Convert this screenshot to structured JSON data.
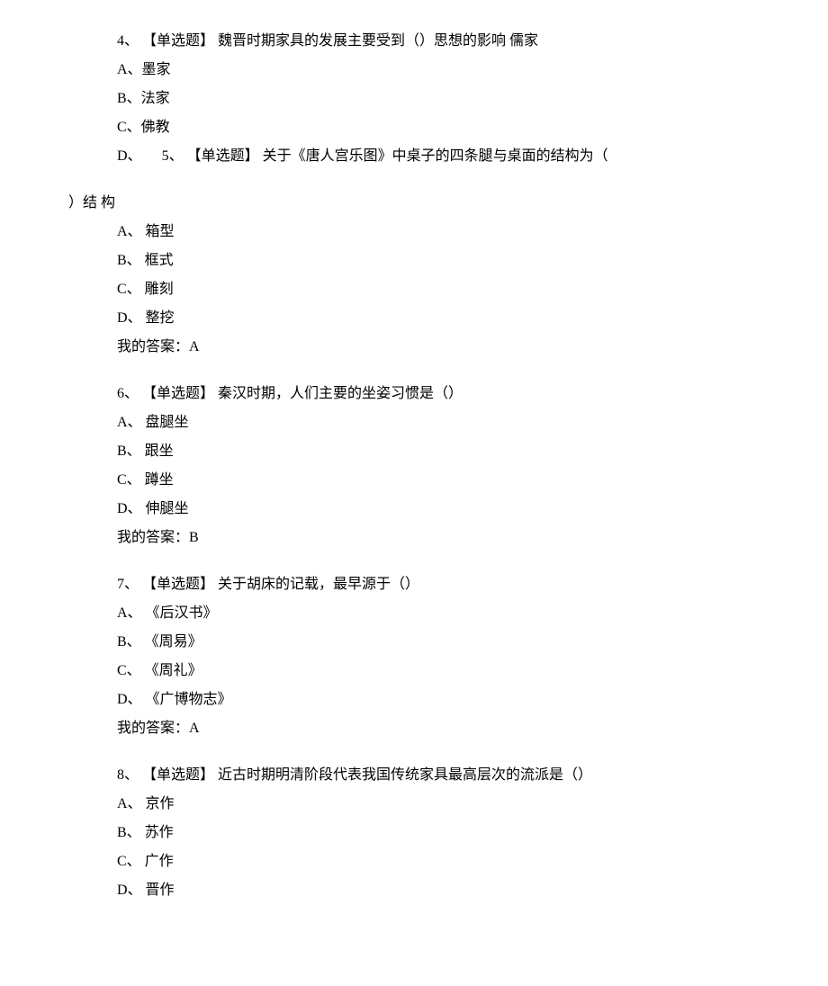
{
  "q4": {
    "number": "4、",
    "tag": "【单选题】",
    "text": "魏晋时期家具的发展主要受到（）思想的影响  儒家",
    "options": {
      "A": "A、墨家",
      "B": "B、法家",
      "C": "C、佛教",
      "D": "D、"
    }
  },
  "q5": {
    "number": "5、",
    "tag": "【单选题】",
    "line1": "关于《唐人宫乐图》中桌子的四条腿与桌面的结构为（",
    "line2": "）结  构",
    "options": {
      "A": "A、 箱型",
      "B": "B、 框式",
      "C": "C、 雕刻",
      "D": "D、 整挖"
    },
    "answer": "我的答案：A"
  },
  "q6": {
    "number": "6、",
    "tag": "【单选题】",
    "text": "秦汉时期，人们主要的坐姿习惯是（）",
    "options": {
      "A": "A、 盘腿坐",
      "B": "B、 跟坐",
      "C": "C、 蹲坐",
      "D": "D、 伸腿坐"
    },
    "answer": "我的答案：B"
  },
  "q7": {
    "number": "7、",
    "tag": "【单选题】",
    "text": "关于胡床的记载，最早源于（）",
    "options": {
      "A": "A、 《后汉书》",
      "B": "B、 《周易》",
      "C": "C、 《周礼》",
      "D": "D、 《广博物志》"
    },
    "answer": "我的答案：A"
  },
  "q8": {
    "number": "8、",
    "tag": "【单选题】",
    "text": "近古时期明清阶段代表我国传统家具最高层次的流派是（）",
    "options": {
      "A": "A、 京作",
      "B": "B、 苏作",
      "C": "C、 广作",
      "D": "D、 晋作"
    }
  }
}
